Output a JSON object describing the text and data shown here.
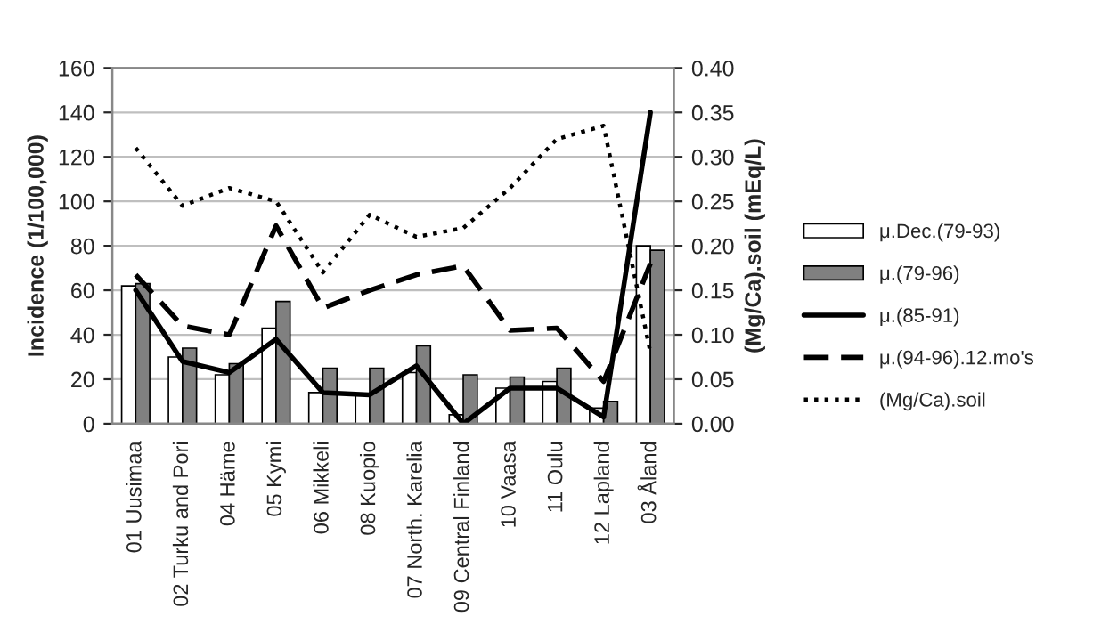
{
  "chart_data": {
    "type": "bar",
    "ylabel": "Incidence (1/100,000)",
    "y2label": "(Mg/Ca).soil (mEq/L)",
    "categories": [
      "01 Uusimaa",
      "02 Turku and Pori",
      "04 Häme",
      "05 Kymi",
      "06 Mikkeli",
      "08 Kuopio",
      "07 North. Karelia",
      "09 Central Finland",
      "10 Vaasa",
      "11 Oulu",
      "12 Lapland",
      "03 Åland"
    ],
    "series": [
      {
        "name": "μ.Dec.(79-93)",
        "color": "#ffffff",
        "values": [
          62,
          30,
          22,
          43,
          14,
          13,
          23,
          4,
          16,
          19,
          7,
          80
        ]
      },
      {
        "name": "μ.(79-96)",
        "color": "#808080",
        "values": [
          63,
          34,
          27,
          55,
          25,
          25,
          35,
          22,
          21,
          25,
          10,
          78
        ]
      },
      {
        "name": "μ.(85-91)",
        "type": "line",
        "color": "#000000",
        "line_style": "solid",
        "values": [
          60,
          28,
          23,
          38,
          14,
          13,
          26,
          0,
          16,
          16,
          3,
          140
        ]
      },
      {
        "name": "μ.(94-96).12.mo's",
        "type": "line",
        "color": "#000000",
        "line_style": "dashed",
        "values": [
          67,
          44,
          40,
          89,
          52,
          60,
          67,
          71,
          42,
          43,
          19,
          72
        ]
      },
      {
        "name": "(Mg/Ca).soil",
        "type": "line",
        "axis": "y2",
        "color": "#000000",
        "line_style": "dotted",
        "values": [
          0.31,
          0.245,
          0.265,
          0.25,
          0.17,
          0.235,
          0.21,
          0.22,
          0.265,
          0.32,
          0.335,
          0.08
        ]
      }
    ],
    "ylim": [
      0,
      160
    ],
    "yticks": [
      0,
      20,
      40,
      60,
      80,
      100,
      120,
      140,
      160
    ],
    "y2lim": [
      0,
      0.4
    ],
    "y2ticks": [
      {
        "value": 0,
        "label": "0.00"
      },
      {
        "value": 0.05,
        "label": "0.05"
      },
      {
        "value": 0.1,
        "label": "0.10"
      },
      {
        "value": 0.15,
        "label": "0.15"
      },
      {
        "value": 0.2,
        "label": "0.20"
      },
      {
        "value": 0.25,
        "label": "0.25"
      },
      {
        "value": 0.3,
        "label": "0.30"
      },
      {
        "value": 0.35,
        "label": "0.35"
      },
      {
        "value": 0.4,
        "label": "0.40"
      }
    ],
    "grid": "y",
    "legend": "right"
  }
}
